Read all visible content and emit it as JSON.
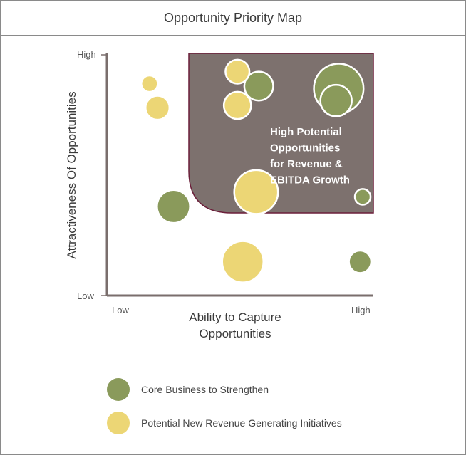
{
  "title": "Opportunity Priority Map",
  "chart_data": {
    "type": "scatter",
    "title": "Opportunity Priority Map",
    "xlabel": "Ability to Capture Opportunities",
    "ylabel": "Attractiveness Of Opportunities",
    "x_ticks": [
      "Low",
      "High"
    ],
    "y_ticks": [
      "Low",
      "High"
    ],
    "xlim": [
      0,
      100
    ],
    "ylim": [
      0,
      100
    ],
    "zone_label": "High Potential Opportunities for Revenue & EBITDA Growth",
    "zone_label_lines": [
      "High Potential",
      "Opportunities",
      "for Revenue &",
      "EBITDA Growth"
    ],
    "zone_color": "#7d716e",
    "zone_border_color": "#6b1f3a",
    "series": [
      {
        "name": "Core Business to Strengthen",
        "color": "#8a9a5b",
        "points": [
          {
            "x": 57,
            "y": 87,
            "size": 3.5
          },
          {
            "x": 87,
            "y": 86,
            "size": 6
          },
          {
            "x": 86,
            "y": 81,
            "size": 3.8
          },
          {
            "x": 25,
            "y": 37,
            "size": 4
          },
          {
            "x": 96,
            "y": 41,
            "size": 1.9
          },
          {
            "x": 95,
            "y": 14,
            "size": 2.7
          }
        ]
      },
      {
        "name": "Potential New Revenue Generating Initiatives",
        "color": "#ecd675",
        "points": [
          {
            "x": 16,
            "y": 88,
            "size": 2
          },
          {
            "x": 19,
            "y": 78,
            "size": 2.9
          },
          {
            "x": 49,
            "y": 93,
            "size": 2.9
          },
          {
            "x": 49,
            "y": 79,
            "size": 3.3
          },
          {
            "x": 56,
            "y": 43,
            "size": 5.3
          },
          {
            "x": 51,
            "y": 14,
            "size": 5
          }
        ]
      }
    ],
    "legend": "bottom-left"
  },
  "legend": [
    {
      "label": "Core Business to Strengthen",
      "color": "#8a9a5b"
    },
    {
      "label": "Potential New Revenue Generating Initiatives",
      "color": "#ecd675"
    }
  ]
}
